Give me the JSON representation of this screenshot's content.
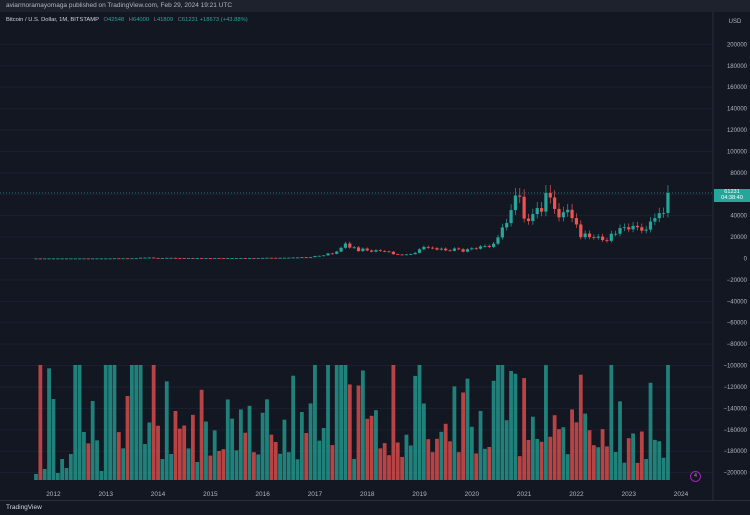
{
  "header": {
    "text": "aviarmoramayomaga published on TradingView.com, Feb 29, 2024 19:21 UTC"
  },
  "legend": {
    "symbol": "Bitcoin / U.S. Dollar, 1M, BITSTAMP",
    "o_label": "O",
    "o_value": "42548",
    "h_label": "H",
    "h_value": "64000",
    "l_label": "L",
    "l_value": "41809",
    "c_label": "C",
    "c_value": "61231",
    "change": "+18673 (+43.88%)"
  },
  "last_price": {
    "value": "61231",
    "countdown": "04:38:40"
  },
  "footer": {
    "brand": "TradingView"
  },
  "colors": {
    "up": "#26a69a",
    "down": "#ef5350",
    "bg": "#131722",
    "grid": "#1e222d"
  },
  "chart_data": {
    "type": "candlestick",
    "ylabel": "USD",
    "ylim": [
      -205000,
      205000
    ],
    "y_ticks": [
      200000,
      180000,
      160000,
      140000,
      120000,
      100000,
      80000,
      60000,
      40000,
      20000,
      0,
      -20000,
      -40000,
      -60000,
      -80000,
      -100000,
      -120000,
      -140000,
      -160000,
      -180000,
      -200000
    ],
    "y_tick_labels": [
      "200000",
      "180000",
      "160000",
      "140000",
      "120000",
      "100000",
      "80000",
      "60000",
      "40000",
      "20000",
      "0",
      "−20000",
      "−40000",
      "−60000",
      "−80000",
      "−100000",
      "−120000",
      "−140000",
      "−160000",
      "−180000",
      "−200000"
    ],
    "x_ticks": [
      "2012",
      "2013",
      "2014",
      "2015",
      "2016",
      "2017",
      "2018",
      "2019",
      "2020",
      "2021",
      "2022",
      "2023",
      "2024"
    ],
    "x_start": "2011-09",
    "x_end": "2024-02",
    "monthly_close": [
      5,
      3,
      3,
      4,
      5,
      5,
      5,
      5,
      5,
      7,
      10,
      11,
      10,
      12,
      13,
      13,
      20,
      34,
      135,
      120,
      130,
      100,
      140,
      200,
      730,
      800,
      900,
      550,
      450,
      450,
      600,
      600,
      480,
      400,
      350,
      375,
      320,
      320,
      220,
      250,
      240,
      260,
      250,
      230,
      280,
      330,
      360,
      430,
      370,
      440,
      420,
      450,
      530,
      670,
      620,
      570,
      610,
      700,
      740,
      960,
      970,
      1190,
      1080,
      1340,
      2300,
      2480,
      2880,
      4700,
      4340,
      6450,
      10000,
      14000,
      10200,
      10400,
      6900,
      9250,
      7500,
      6400,
      7700,
      7000,
      6600,
      6300,
      4000,
      3700,
      3500,
      3800,
      4100,
      5300,
      8600,
      10800,
      10100,
      9600,
      8300,
      9200,
      7600,
      7200,
      9350,
      8600,
      6400,
      8600,
      9500,
      9150,
      11300,
      11700,
      10800,
      13800,
      19700,
      29000,
      33100,
      45200,
      58800,
      57700,
      37300,
      35000,
      41500,
      47100,
      43800,
      61300,
      57000,
      46300,
      38500,
      43200,
      45500,
      37700,
      31800,
      19900,
      23300,
      20000,
      19400,
      20500,
      17200,
      16500,
      23100,
      23100,
      28400,
      29200,
      27200,
      30500,
      29200,
      26000,
      27000,
      34500,
      37700,
      42300,
      42500,
      61231
    ],
    "last_close": 61231,
    "volume_note": "volume histogram shown below price, up/down colored"
  }
}
